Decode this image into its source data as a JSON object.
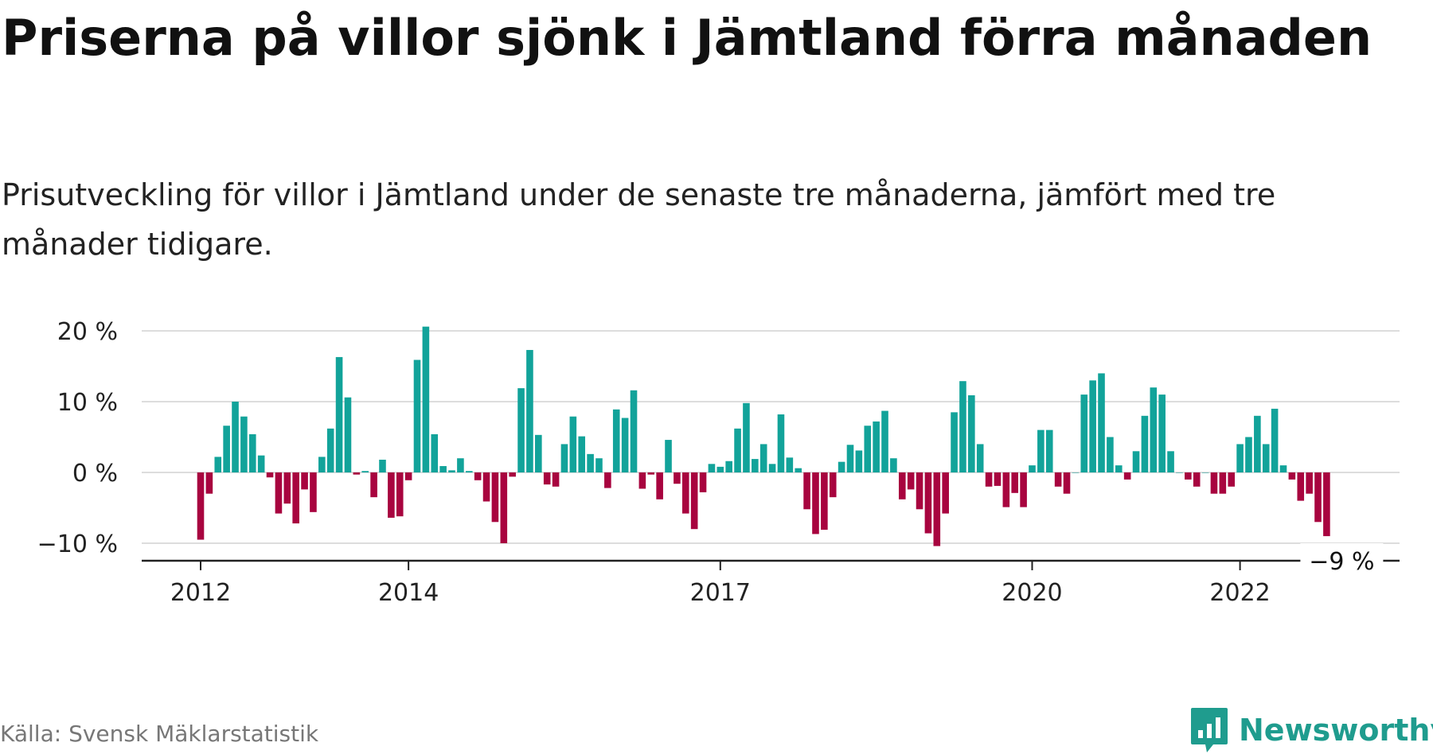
{
  "title": "Priserna på villor sjönk i Jämtland förra månaden",
  "subtitle": "Prisutveckling för villor i Jämtland under de senaste tre månaderna, jämfört med tre månader tidigare.",
  "source": "Källa: Svensk Mäklarstatistik",
  "brand": "Newsworthy",
  "colors": {
    "positive": "#12a39a",
    "negative": "#a8043f",
    "grid": "#dddddd",
    "axis": "#222222",
    "brand": "#1f9c8e"
  },
  "chart_data": {
    "type": "bar",
    "start": "2012-01",
    "y_unit": "%",
    "ylim": [
      -12,
      20.5
    ],
    "yticks": [
      20,
      10,
      0,
      -10
    ],
    "ytick_labels": [
      "20 %",
      "10 %",
      "0 %",
      "−10 %"
    ],
    "xticks": [
      "2012-01",
      "2014-01",
      "2017-01",
      "2020-01",
      "2022-01"
    ],
    "xtick_labels": [
      "2012",
      "2014",
      "2017",
      "2020",
      "2022"
    ],
    "last_value_label": "−9 %",
    "values": [
      -9.5,
      -3,
      2.2,
      6.6,
      10,
      7.9,
      5.4,
      2.4,
      -0.7,
      -5.8,
      -4.4,
      -7.2,
      -2.4,
      -5.6,
      2.2,
      6.2,
      16.3,
      10.6,
      -0.3,
      0.2,
      -3.5,
      1.8,
      -6.4,
      -6.2,
      -1.1,
      15.9,
      20.6,
      5.4,
      0.9,
      0.3,
      2,
      0.2,
      -1.1,
      -4.1,
      -7,
      -10,
      -0.6,
      11.9,
      17.3,
      5.3,
      -1.7,
      -2,
      4,
      7.9,
      5.1,
      2.6,
      2,
      -2.2,
      8.9,
      7.7,
      11.6,
      -2.3,
      -0.3,
      -3.8,
      4.6,
      -1.6,
      -5.8,
      -8,
      -2.8,
      1.2,
      0.8,
      1.6,
      6.2,
      9.8,
      1.9,
      4,
      1.2,
      8.2,
      2.1,
      0.6,
      -5.2,
      -8.7,
      -8.1,
      -3.5,
      1.5,
      3.9,
      3.1,
      6.6,
      7.2,
      8.7,
      2,
      -3.8,
      -2.4,
      -5.2,
      -8.6,
      -10.4,
      -5.8,
      8.5,
      12.9,
      10.9,
      4,
      -2,
      -1.9,
      -4.9,
      -2.9,
      -4.9,
      1,
      6,
      6,
      -2,
      -3,
      0,
      11,
      13,
      14,
      5,
      1,
      -1,
      3,
      8,
      12,
      11,
      3,
      0,
      -1,
      -2,
      0,
      -3,
      -3,
      -2,
      4,
      5,
      8,
      4,
      9,
      1,
      -1,
      -4,
      -3,
      -7,
      -9
    ]
  }
}
